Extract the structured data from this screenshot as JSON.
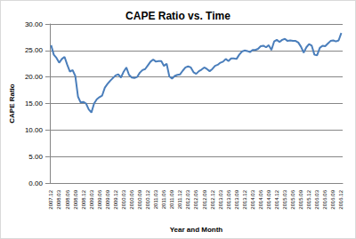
{
  "chart_data": {
    "type": "line",
    "title": "CAPE Ratio vs. Time",
    "x_label": "Year and Month",
    "y_label": "CAPE Ratio",
    "categories": [
      "2007.12",
      null,
      null,
      "2008.03",
      null,
      null,
      "2008.06",
      null,
      null,
      "2008.09",
      null,
      null,
      "2008.12",
      null,
      null,
      "2009.03",
      null,
      null,
      "2009.06",
      null,
      null,
      "2009.09",
      null,
      null,
      "2009.12",
      null,
      null,
      "2010.03",
      null,
      null,
      "2010.06",
      null,
      null,
      "2010.09",
      null,
      null,
      "2010.12",
      null,
      null,
      "2011.03",
      null,
      null,
      "2011.06",
      null,
      null,
      "2011.09",
      null,
      null,
      "2011.12",
      null,
      null,
      "2012.03",
      null,
      null,
      "2012.06",
      null,
      null,
      "2012.09",
      null,
      null,
      "2012.12",
      null,
      null,
      "2013.03",
      null,
      null,
      "2013.06",
      null,
      null,
      "2013.09",
      null,
      null,
      "2013.12",
      null,
      null,
      "2014.03",
      null,
      null,
      "2014.06",
      null,
      null,
      "2014.09",
      null,
      null,
      "2014.12",
      null,
      null,
      "2015.03",
      null,
      null,
      "2015.06",
      null,
      null,
      "2015.09",
      null,
      null,
      "2015.12",
      null,
      null,
      "2016.03",
      null,
      null,
      "2016.06",
      null,
      null,
      "2016.09",
      null,
      null,
      "2016.12"
    ],
    "values": [
      26.0,
      24.2,
      23.6,
      22.7,
      23.4,
      23.8,
      22.3,
      21.0,
      21.3,
      20.2,
      16.3,
      15.2,
      15.3,
      15.0,
      13.9,
      13.3,
      15.0,
      15.8,
      16.2,
      16.5,
      18.0,
      18.7,
      19.3,
      19.8,
      20.3,
      20.5,
      19.9,
      21.0,
      21.8,
      20.4,
      19.9,
      19.8,
      20.0,
      20.8,
      21.3,
      21.5,
      22.2,
      22.9,
      23.3,
      22.9,
      23.0,
      23.0,
      22.1,
      22.5,
      20.1,
      19.7,
      20.2,
      20.4,
      20.5,
      21.2,
      21.8,
      22.0,
      21.8,
      20.9,
      20.6,
      21.1,
      21.4,
      21.8,
      21.5,
      21.1,
      21.5,
      22.1,
      22.3,
      22.7,
      22.9,
      23.4,
      23.0,
      23.5,
      23.5,
      23.4,
      24.2,
      24.8,
      25.0,
      24.9,
      24.7,
      25.1,
      25.1,
      25.3,
      25.8,
      25.9,
      25.6,
      26.0,
      25.1,
      26.7,
      27.0,
      26.6,
      27.0,
      27.2,
      26.8,
      26.9,
      26.8,
      26.8,
      26.5,
      25.7,
      24.6,
      25.6,
      26.2,
      25.9,
      24.2,
      24.1,
      25.5,
      25.9,
      25.8,
      26.3,
      26.8,
      26.9,
      26.7,
      26.9,
      28.3
    ],
    "color": "#4a7ebb",
    "ylim": [
      0,
      30
    ],
    "yticks": [
      {
        "value": 0,
        "label": "0.00"
      },
      {
        "value": 5,
        "label": "5.00"
      },
      {
        "value": 10,
        "label": "10.00"
      },
      {
        "value": 15,
        "label": "15.00"
      },
      {
        "value": 20,
        "label": "20.00"
      },
      {
        "value": 25,
        "label": "25.00"
      },
      {
        "value": 30,
        "label": "30.00"
      }
    ],
    "grid": true
  }
}
